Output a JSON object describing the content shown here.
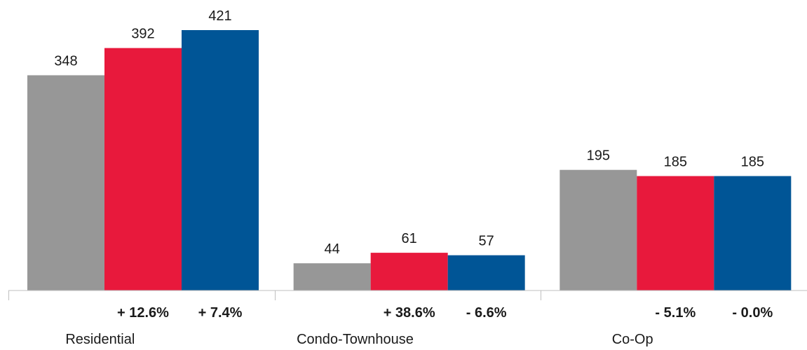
{
  "chart_data": {
    "type": "bar",
    "categories": [
      "Residential",
      "Condo-Townhouse",
      "Co-Op"
    ],
    "series": [
      {
        "values": [
          348,
          44,
          195
        ],
        "color": "#979797"
      },
      {
        "values": [
          392,
          61,
          185
        ],
        "color": "#e8193c"
      },
      {
        "values": [
          421,
          57,
          185
        ],
        "color": "#005596"
      }
    ],
    "change_labels": [
      [
        "+ 12.6%",
        "+ 7.4%"
      ],
      [
        "+ 38.6%",
        "- 6.6%"
      ],
      [
        "- 5.1%",
        "- 0.0%"
      ]
    ],
    "ylim": [
      0,
      421
    ],
    "grid": false,
    "title": "",
    "xlabel": "",
    "ylabel": ""
  }
}
